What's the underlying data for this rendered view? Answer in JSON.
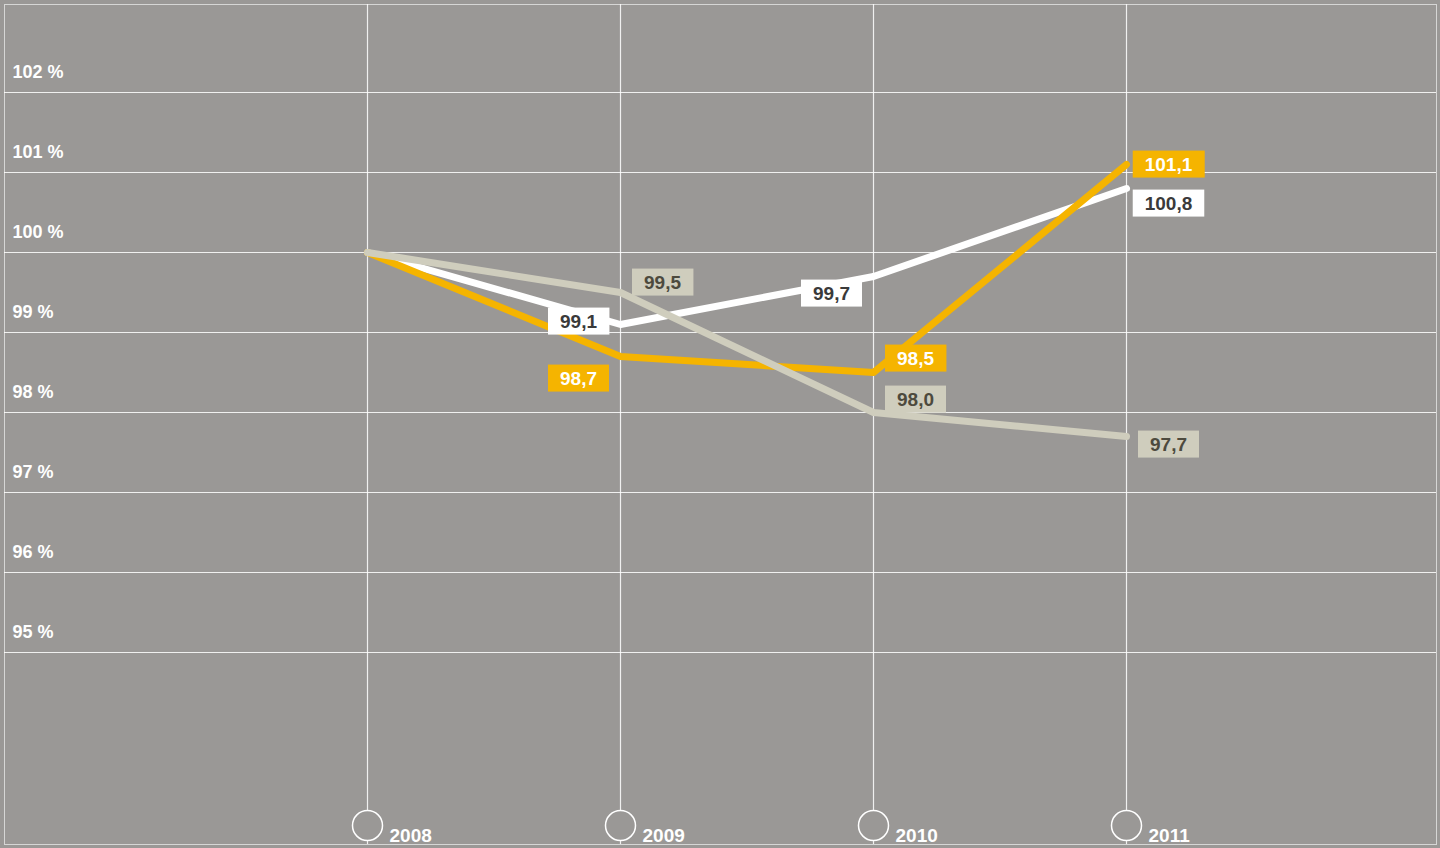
{
  "chart_data": {
    "type": "line",
    "categories": [
      "2008",
      "2009",
      "2010",
      "2011"
    ],
    "series": [
      {
        "color": "#ffffff",
        "values": [
          100,
          99.1,
          99.7,
          100.8
        ],
        "value_labels": [
          null,
          "99,1",
          "99,7",
          "100,8"
        ]
      },
      {
        "color": "#f5b400",
        "values": [
          100,
          98.7,
          98.5,
          101.1
        ],
        "value_labels": [
          null,
          "98,7",
          "98,5",
          "101,1"
        ]
      },
      {
        "color": "#cfcdbd",
        "values": [
          100,
          99.5,
          98.0,
          97.7
        ],
        "value_labels": [
          null,
          "99,5",
          "98,0",
          "97,7"
        ]
      }
    ],
    "ylim": [
      92.6,
      103.1
    ],
    "yticks": [
      {
        "value": 95,
        "label": "95 %"
      },
      {
        "value": 96,
        "label": "96 %"
      },
      {
        "value": 97,
        "label": "97 %"
      },
      {
        "value": 98,
        "label": "98 %"
      },
      {
        "value": 99,
        "label": "99 %"
      },
      {
        "value": 100,
        "label": "100 %"
      },
      {
        "value": 101,
        "label": "101 %"
      },
      {
        "value": 102,
        "label": "102 %"
      }
    ],
    "grid": true,
    "data_labels": true
  }
}
